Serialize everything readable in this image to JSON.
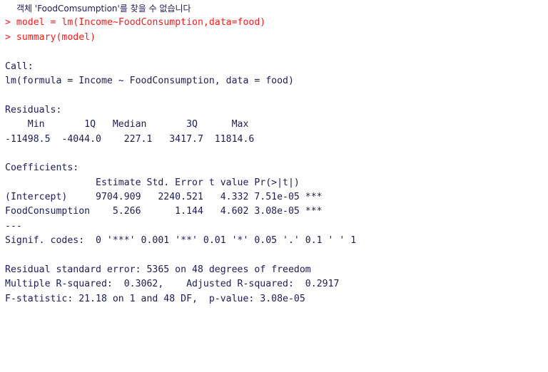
{
  "console": {
    "error_message": "객체 'FoodComsumption'를 찾을 수 없습니다",
    "prompt": ">",
    "commands": [
      "model = lm(Income~FoodConsumption,data=food)",
      "summary(model)"
    ],
    "call_header": "Call:",
    "call_formula": "lm(formula = Income ~ FoodConsumption, data = food)",
    "residuals_header": "Residuals:",
    "residuals_labels": "    Min       1Q   Median       3Q      Max ",
    "residuals_values": "-11498.5  -4044.0    227.1   3417.7  11814.6 ",
    "coefficients_header": "Coefficients:",
    "coef_columns": "                Estimate Std. Error t value Pr(>|t|)    ",
    "coef_rows": [
      "(Intercept)     9704.909   2240.521   4.332 7.51e-05 ***",
      "FoodConsumption    5.266      1.144   4.602 3.08e-05 ***"
    ],
    "separator": "---",
    "signif_codes": "Signif. codes:  0 '***' 0.001 '**' 0.01 '*' 0.05 '.' 0.1 ' ' 1",
    "residual_se": "Residual standard error: 5365 on 48 degrees of freedom",
    "r_squared": "Multiple R-squared:  0.3062,\tAdjusted R-squared:  0.2917 ",
    "f_statistic": "F-statistic: 21.18 on 1 and 48 DF,  p-value: 3.08e-05"
  },
  "colors": {
    "output_text": "#1c1c5a",
    "command_text": "#ff1a1a",
    "background": "#ffffff"
  }
}
